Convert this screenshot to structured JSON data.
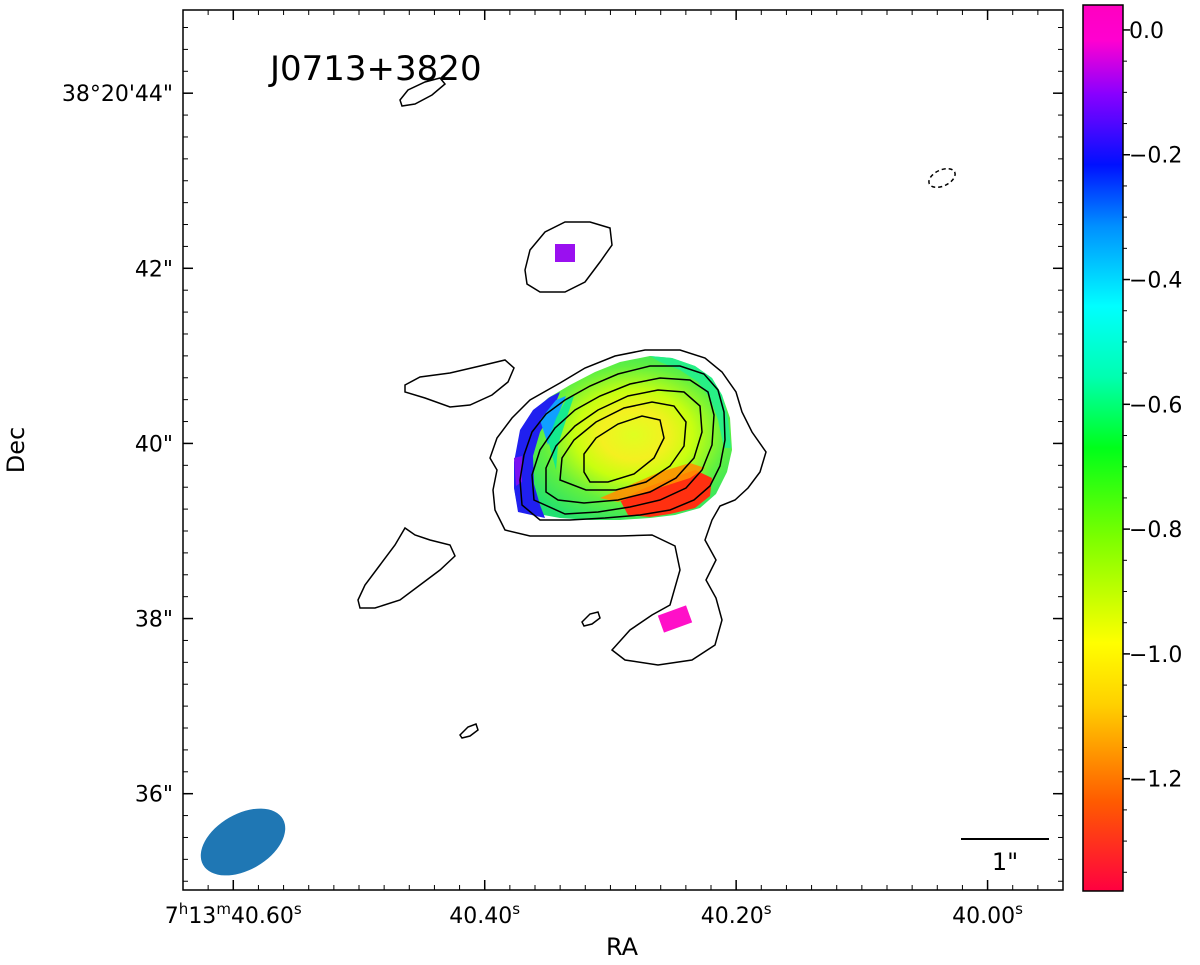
{
  "chart_data": {
    "type": "heatmap",
    "title": "J0713+3820",
    "xlabel": "RA",
    "ylabel": "Dec",
    "x_ticks": [
      {
        "value": 40.6,
        "h": "7",
        "m": "13",
        "s": "40.60",
        "sup_s": "s",
        "sup_h": "h",
        "sup_m": "m",
        "full": true
      },
      {
        "value": 40.4,
        "s": "40.40",
        "sup_s": "s"
      },
      {
        "value": 40.2,
        "s": "40.20",
        "sup_s": "s"
      },
      {
        "value": 40.0,
        "s": "40.00",
        "sup_s": "s"
      }
    ],
    "y_ticks": [
      {
        "value": 44,
        "label": "38°20'44\""
      },
      {
        "value": 42,
        "label": "42\""
      },
      {
        "value": 40,
        "label": "40\""
      },
      {
        "value": 38,
        "label": "38\""
      },
      {
        "value": 36,
        "label": "36\""
      }
    ],
    "xlim": [
      40.64,
      39.94
    ],
    "ylim": [
      34.9,
      44.95
    ],
    "colorbar": {
      "ticks": [
        0.0,
        -0.2,
        -0.4,
        -0.6,
        -0.8,
        -1.0,
        -1.2
      ],
      "tick_labels": [
        "0.0",
        "−0.2",
        "−0.4",
        "−0.6",
        "−0.8",
        "−1.0",
        "−1.2"
      ],
      "range": [
        -1.38,
        0.04
      ],
      "colormap": "gist_rainbow"
    },
    "scale_bar_label": "1\"",
    "beam": {
      "color": "#1f77b4"
    },
    "contour_levels": 6
  }
}
